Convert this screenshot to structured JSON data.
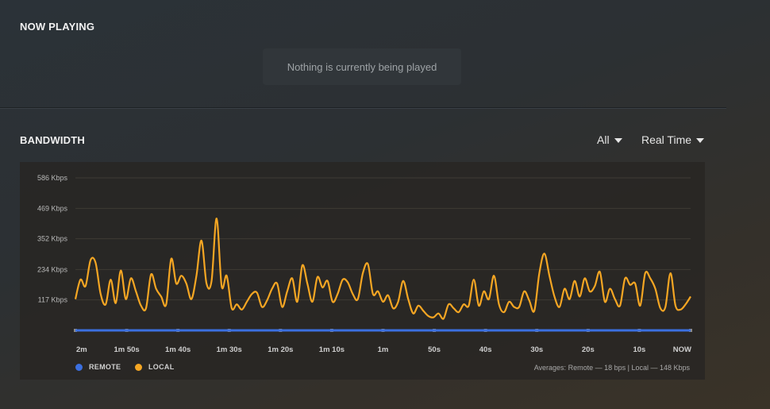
{
  "now_playing": {
    "title": "NOW PLAYING",
    "empty_message": "Nothing is currently being played"
  },
  "bandwidth": {
    "title": "BANDWIDTH",
    "filter_value": "All",
    "range_value": "Real Time",
    "averages_text": "Averages: Remote — 18 bps | Local — 148 Kbps"
  },
  "colors": {
    "remote": "#3b6fe0",
    "local": "#f5a623"
  },
  "chart_data": {
    "type": "line",
    "title": "BANDWIDTH",
    "y_ticks": [
      "117 Kbps",
      "234 Kbps",
      "352 Kbps",
      "469 Kbps",
      "586 Kbps"
    ],
    "y_tick_values": [
      117,
      234,
      352,
      469,
      586
    ],
    "ylim": [
      0,
      586
    ],
    "x_ticks": [
      "2m",
      "1m 50s",
      "1m 40s",
      "1m 30s",
      "1m 20s",
      "1m 10s",
      "1m",
      "50s",
      "40s",
      "30s",
      "20s",
      "10s",
      "NOW"
    ],
    "x_range_seconds": [
      -120,
      0
    ],
    "series": [
      {
        "name": "REMOTE",
        "values": [
          0,
          0,
          0,
          0,
          0,
          0,
          0,
          0,
          0,
          0,
          0,
          0,
          0,
          0,
          0,
          0,
          0,
          0,
          0,
          0,
          0,
          0,
          0,
          0,
          0,
          0,
          0,
          0,
          0,
          0,
          0,
          0,
          0,
          0,
          0,
          0,
          0,
          0,
          0,
          0,
          0,
          0,
          0,
          0,
          0,
          0,
          0,
          0,
          0,
          0,
          0,
          0,
          0,
          0,
          0,
          0,
          0,
          0,
          0,
          0,
          0,
          0,
          0,
          0,
          0,
          0,
          0,
          0,
          0,
          0,
          0,
          0,
          0,
          0,
          0,
          0,
          0,
          0,
          0,
          0,
          0,
          0,
          0,
          0,
          0,
          0,
          0,
          0,
          0,
          0,
          0,
          0,
          0,
          0,
          0,
          0,
          0,
          0,
          0,
          0,
          0,
          0,
          0,
          0,
          0,
          0,
          0,
          0,
          0,
          0,
          0,
          0,
          0,
          0,
          0,
          0,
          0,
          0,
          0,
          0,
          0
        ]
      },
      {
        "name": "LOCAL",
        "values": [
          120,
          195,
          170,
          270,
          260,
          140,
          100,
          195,
          105,
          230,
          120,
          200,
          150,
          95,
          85,
          215,
          160,
          130,
          100,
          275,
          180,
          210,
          180,
          120,
          210,
          345,
          180,
          190,
          430,
          170,
          210,
          85,
          100,
          80,
          110,
          140,
          145,
          90,
          115,
          160,
          180,
          90,
          150,
          200,
          110,
          250,
          180,
          110,
          205,
          165,
          190,
          110,
          140,
          195,
          185,
          140,
          120,
          220,
          255,
          140,
          150,
          110,
          135,
          85,
          110,
          190,
          120,
          65,
          95,
          75,
          55,
          50,
          65,
          45,
          100,
          85,
          70,
          100,
          95,
          195,
          95,
          150,
          120,
          210,
          100,
          70,
          110,
          90,
          90,
          150,
          115,
          75,
          220,
          295,
          210,
          130,
          90,
          160,
          120,
          190,
          130,
          200,
          150,
          170,
          225,
          110,
          160,
          120,
          95,
          200,
          175,
          180,
          95,
          220,
          200,
          160,
          85,
          90,
          220,
          95,
          80,
          100,
          130
        ]
      }
    ],
    "legend": [
      "REMOTE",
      "LOCAL"
    ]
  }
}
